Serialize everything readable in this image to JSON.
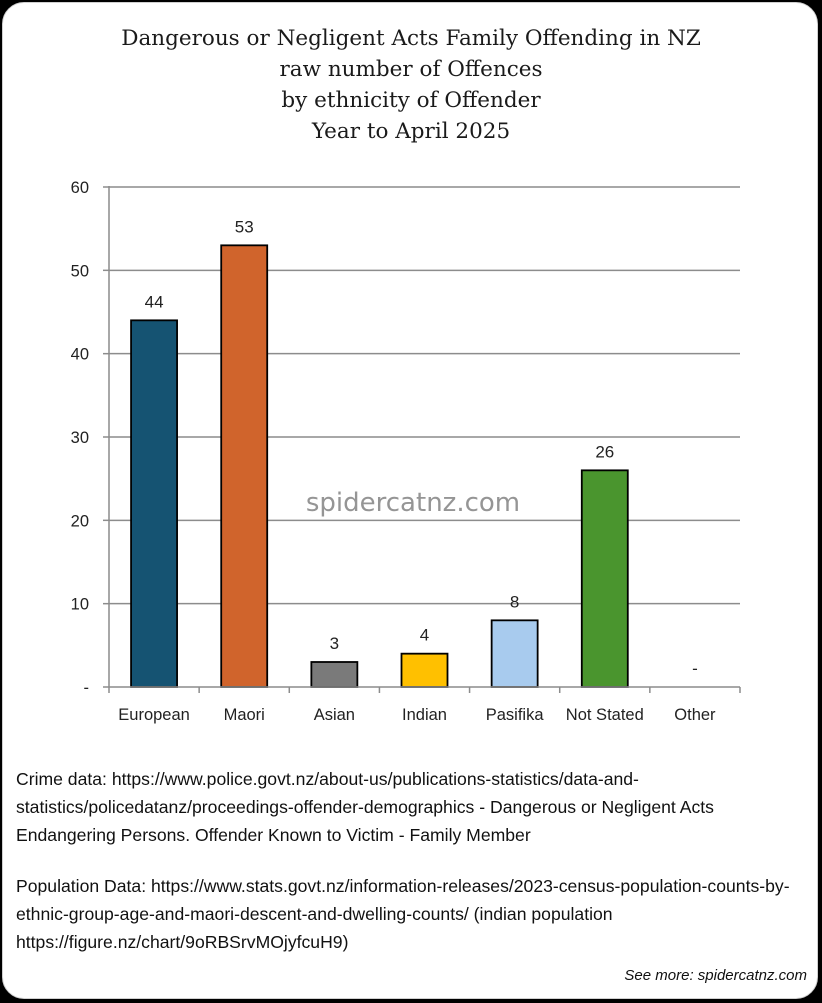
{
  "chart_data": {
    "type": "bar",
    "title": [
      "Dangerous or Negligent Acts Family Offending in NZ",
      "raw number of Offences",
      "by ethnicity of Offender",
      "Year to April 2025"
    ],
    "categories": [
      "European",
      "Maori",
      "Asian",
      "Indian",
      "Pasifika",
      "Not Stated",
      "Other"
    ],
    "values": [
      44,
      53,
      3,
      4,
      8,
      26,
      0
    ],
    "data_labels": [
      "44",
      "53",
      "3",
      "4",
      "8",
      "26",
      "-"
    ],
    "colors": [
      "#155372",
      "#d0642c",
      "#7a7a7a",
      "#ffc000",
      "#a8cbee",
      "#4a952e",
      "#ffffff"
    ],
    "ylim": [
      0,
      60
    ],
    "yticks": [
      0,
      10,
      20,
      30,
      40,
      50,
      60
    ],
    "ytick_labels": [
      "-",
      "10",
      "20",
      "30",
      "40",
      "50",
      "60"
    ],
    "grid": true,
    "xlabel": "",
    "ylabel": "",
    "watermark": "spidercatnz.com"
  },
  "notes": {
    "crime": "Crime data: https://www.police.govt.nz/about-us/publications-statistics/data-and-statistics/policedatanz/proceedings-offender-demographics - Dangerous or Negligent Acts Endangering Persons. Offender Known to Victim - Family Member",
    "population": "Population Data: https://www.stats.govt.nz/information-releases/2023-census-population-counts-by-ethnic-group-age-and-maori-descent-and-dwelling-counts/ (indian population https://figure.nz/chart/9oRBSrvMOjyfcuH9)"
  },
  "footer": {
    "see_more": "See more: spidercatnz.com"
  }
}
